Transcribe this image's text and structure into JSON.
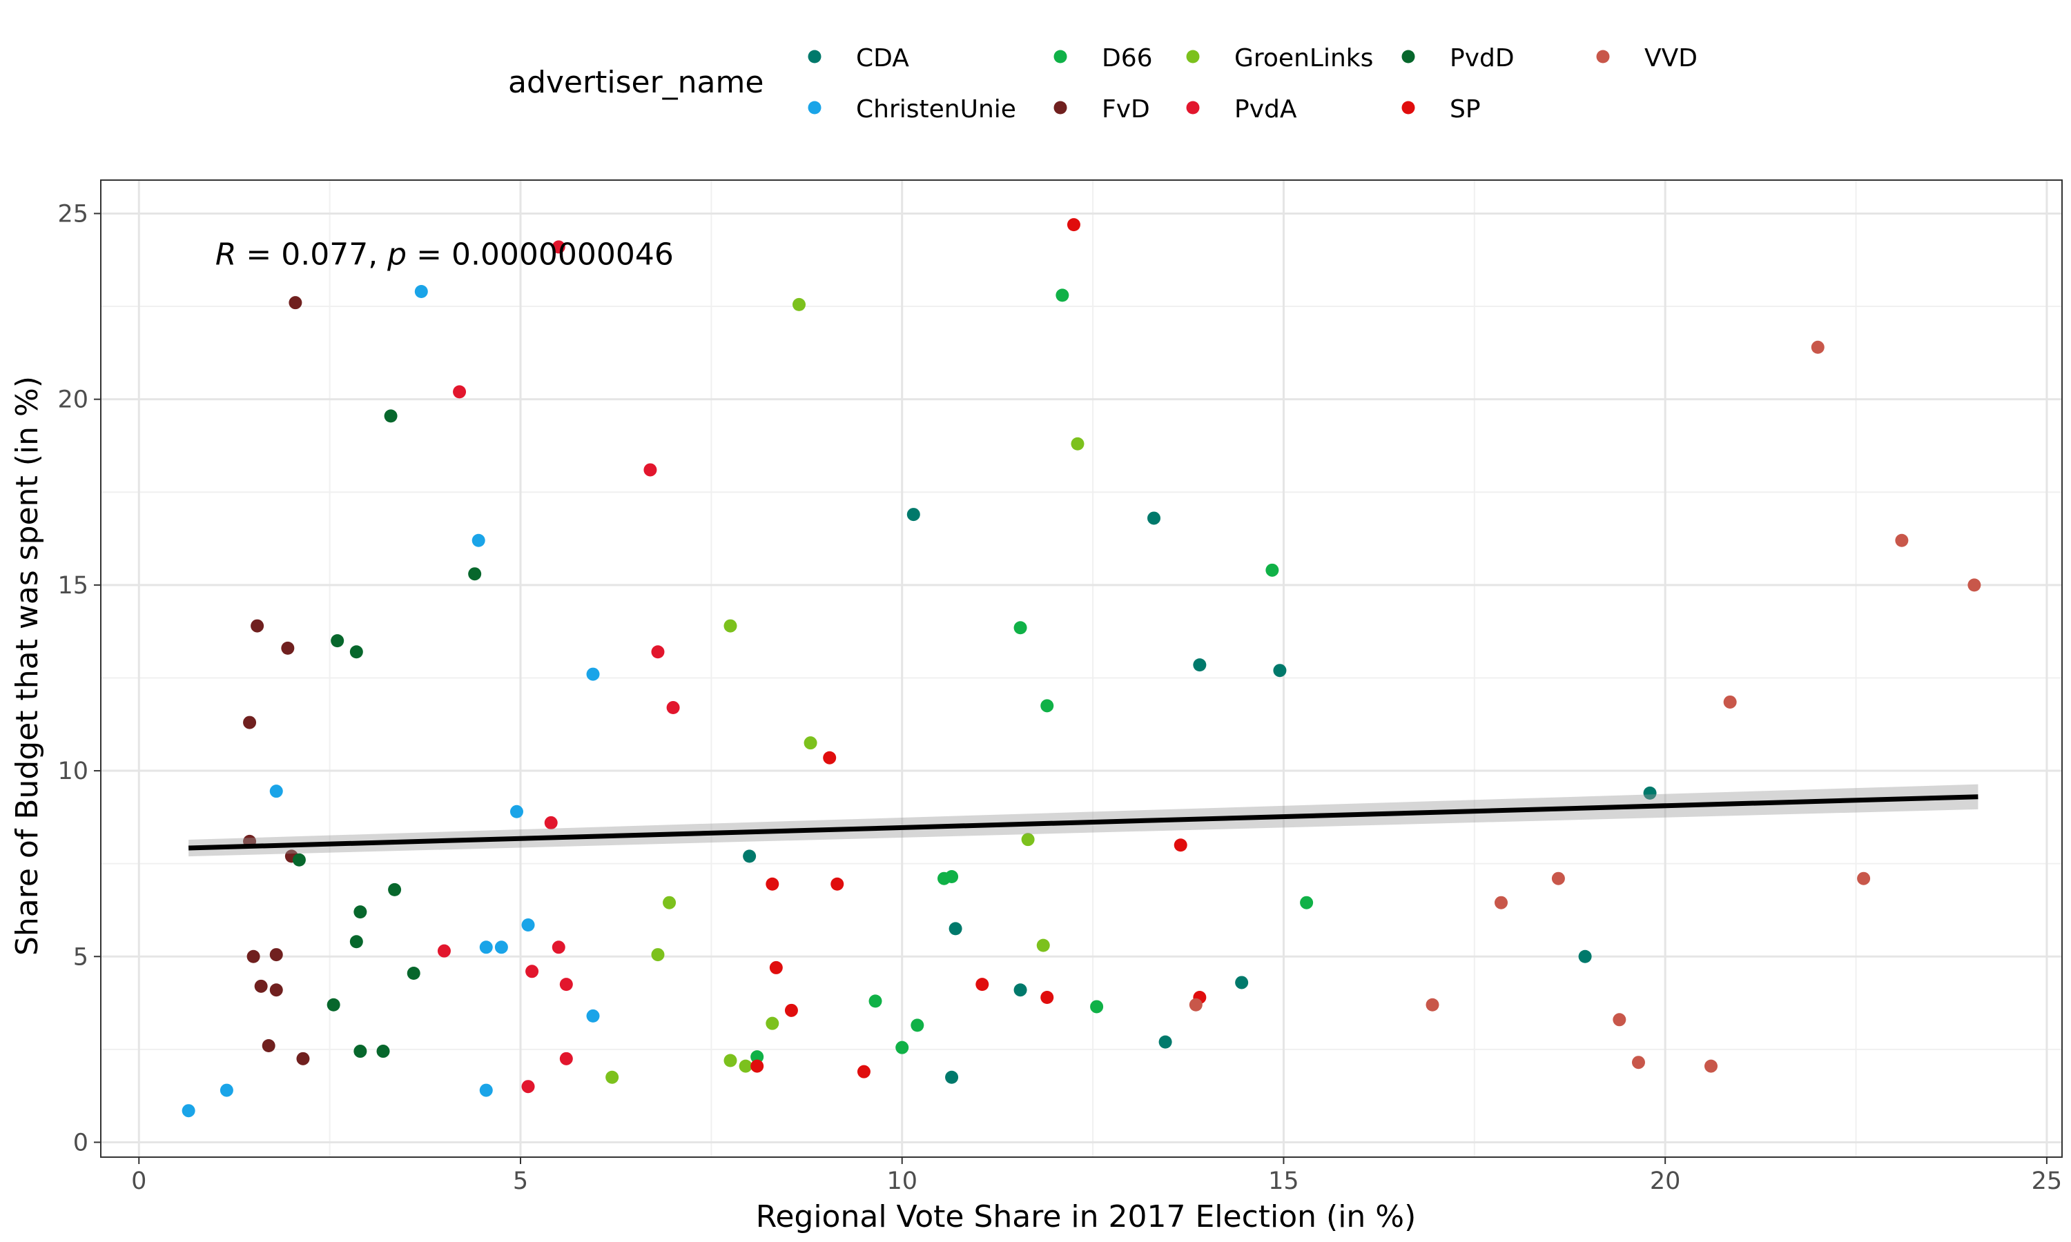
{
  "chart_data": {
    "type": "scatter",
    "xlabel": "Regional Vote Share in 2017 Election (in %)",
    "ylabel": "Share of Budget that was spent (in %)",
    "xlim": [
      -0.5,
      25.2
    ],
    "ylim": [
      -0.4,
      25.9
    ],
    "xticks": [
      0,
      5,
      10,
      15,
      20,
      25
    ],
    "yticks": [
      0,
      5,
      10,
      15,
      20,
      25
    ],
    "grid": true,
    "legend": {
      "title": "advertiser_name",
      "position": "top",
      "entries": [
        "CDA",
        "ChristenUnie",
        "D66",
        "FvD",
        "GroenLinks",
        "PvdA",
        "PvdD",
        "SP",
        "VVD"
      ]
    },
    "annotation": {
      "text": "R = 0.077, p = 0.0000000046",
      "parts": [
        {
          "t": "R",
          "italic": true
        },
        {
          "t": " = 0.077, ",
          "italic": false
        },
        {
          "t": "p",
          "italic": true
        },
        {
          "t": " = 0.0000000046",
          "italic": false
        }
      ],
      "x": 1.0,
      "y": 23.9
    },
    "regression": {
      "x1": 0.65,
      "y1": 7.92,
      "x2": 24.1,
      "y2": 9.3,
      "band": 0.28
    },
    "series": [
      {
        "name": "CDA",
        "color": "#00796B",
        "points": [
          [
            10.15,
            16.9
          ],
          [
            13.3,
            16.8
          ],
          [
            13.9,
            12.85
          ],
          [
            14.95,
            12.7
          ],
          [
            19.8,
            9.4
          ],
          [
            8.0,
            7.7
          ],
          [
            10.7,
            5.75
          ],
          [
            18.95,
            5.0
          ],
          [
            11.55,
            4.1
          ],
          [
            14.45,
            4.3
          ],
          [
            13.45,
            2.7
          ],
          [
            10.65,
            1.75
          ]
        ]
      },
      {
        "name": "ChristenUnie",
        "color": "#1AA4E8",
        "points": [
          [
            3.7,
            22.9
          ],
          [
            4.45,
            16.2
          ],
          [
            5.95,
            12.6
          ],
          [
            1.8,
            9.45
          ],
          [
            4.95,
            8.9
          ],
          [
            5.1,
            5.85
          ],
          [
            4.55,
            5.25
          ],
          [
            4.75,
            5.25
          ],
          [
            5.95,
            3.4
          ],
          [
            4.55,
            1.4
          ],
          [
            1.15,
            1.4
          ],
          [
            0.65,
            0.85
          ]
        ]
      },
      {
        "name": "D66",
        "color": "#10B147",
        "points": [
          [
            12.1,
            22.8
          ],
          [
            14.85,
            15.4
          ],
          [
            11.55,
            13.85
          ],
          [
            11.9,
            11.75
          ],
          [
            10.55,
            7.1
          ],
          [
            10.65,
            7.15
          ],
          [
            15.3,
            6.45
          ],
          [
            9.65,
            3.8
          ],
          [
            10.2,
            3.15
          ],
          [
            12.55,
            3.65
          ],
          [
            10.0,
            2.55
          ],
          [
            8.1,
            2.3
          ]
        ]
      },
      {
        "name": "FvD",
        "color": "#70201F",
        "points": [
          [
            2.05,
            22.6
          ],
          [
            1.55,
            13.9
          ],
          [
            1.95,
            13.3
          ],
          [
            1.45,
            11.3
          ],
          [
            1.45,
            8.1
          ],
          [
            2.0,
            7.7
          ],
          [
            1.5,
            5.0
          ],
          [
            1.8,
            5.05
          ],
          [
            1.6,
            4.2
          ],
          [
            1.8,
            4.1
          ],
          [
            1.7,
            2.6
          ],
          [
            2.15,
            2.25
          ]
        ]
      },
      {
        "name": "GroenLinks",
        "color": "#7CC11D",
        "points": [
          [
            8.65,
            22.55
          ],
          [
            12.3,
            18.8
          ],
          [
            7.75,
            13.9
          ],
          [
            8.8,
            10.75
          ],
          [
            11.65,
            8.15
          ],
          [
            6.95,
            6.45
          ],
          [
            6.8,
            5.05
          ],
          [
            11.85,
            5.3
          ],
          [
            8.3,
            3.2
          ],
          [
            7.75,
            2.2
          ],
          [
            7.95,
            2.05
          ],
          [
            6.2,
            1.75
          ]
        ]
      },
      {
        "name": "PvdA",
        "color": "#E2162D",
        "points": [
          [
            5.5,
            24.1
          ],
          [
            4.2,
            20.2
          ],
          [
            6.7,
            18.1
          ],
          [
            6.8,
            13.2
          ],
          [
            7.0,
            11.7
          ],
          [
            5.4,
            8.6
          ],
          [
            4.0,
            5.15
          ],
          [
            5.5,
            5.25
          ],
          [
            5.15,
            4.6
          ],
          [
            5.6,
            4.25
          ],
          [
            5.6,
            2.25
          ],
          [
            5.1,
            1.5
          ]
        ]
      },
      {
        "name": "PvdD",
        "color": "#07672C",
        "points": [
          [
            3.3,
            19.55
          ],
          [
            4.4,
            15.3
          ],
          [
            2.6,
            13.5
          ],
          [
            2.85,
            13.2
          ],
          [
            2.1,
            7.6
          ],
          [
            3.35,
            6.8
          ],
          [
            2.9,
            6.2
          ],
          [
            2.85,
            5.4
          ],
          [
            3.6,
            4.55
          ],
          [
            2.55,
            3.7
          ],
          [
            2.9,
            2.45
          ],
          [
            3.2,
            2.45
          ]
        ]
      },
      {
        "name": "SP",
        "color": "#E00D0D",
        "points": [
          [
            12.25,
            24.7
          ],
          [
            9.05,
            10.35
          ],
          [
            13.65,
            8.0
          ],
          [
            8.3,
            6.95
          ],
          [
            9.15,
            6.95
          ],
          [
            8.35,
            4.7
          ],
          [
            11.05,
            4.25
          ],
          [
            11.9,
            3.9
          ],
          [
            13.9,
            3.9
          ],
          [
            8.55,
            3.55
          ],
          [
            9.5,
            1.9
          ],
          [
            8.1,
            2.05
          ]
        ]
      },
      {
        "name": "VVD",
        "color": "#C8574A",
        "points": [
          [
            22.0,
            21.4
          ],
          [
            23.1,
            16.2
          ],
          [
            24.05,
            15.0
          ],
          [
            20.85,
            11.85
          ],
          [
            18.6,
            7.1
          ],
          [
            22.6,
            7.1
          ],
          [
            17.85,
            6.45
          ],
          [
            16.95,
            3.7
          ],
          [
            13.85,
            3.7
          ],
          [
            19.4,
            3.3
          ],
          [
            19.65,
            2.15
          ],
          [
            20.6,
            2.05
          ]
        ]
      }
    ]
  }
}
